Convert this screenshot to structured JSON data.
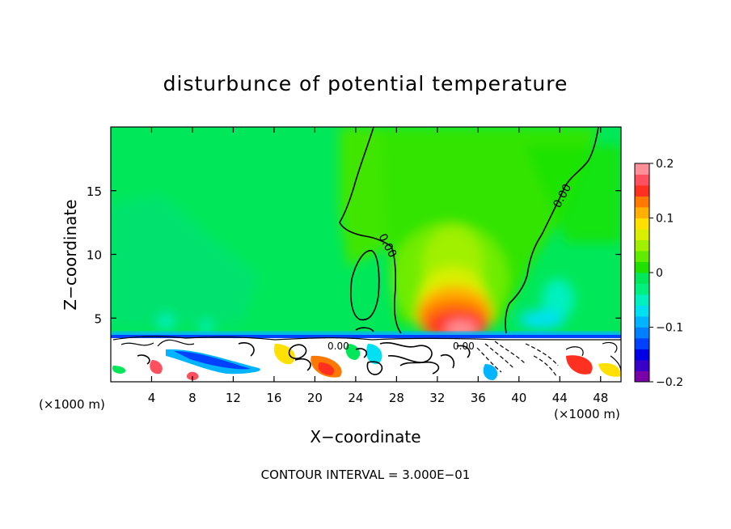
{
  "chart_data": {
    "type": "heatmap",
    "title": "disturbunce of potential temperature",
    "xlabel": "X−coordinate",
    "ylabel": "Z−coordinate",
    "x_unit_left": "(×1000 m)",
    "x_unit_right": "(×1000 m)",
    "xlim": [
      0,
      50
    ],
    "ylim": [
      0,
      20
    ],
    "x_ticks": [
      4,
      8,
      12,
      16,
      20,
      24,
      28,
      32,
      36,
      40,
      44,
      48
    ],
    "y_ticks": [
      5,
      10,
      15
    ],
    "colorbar": {
      "min": -0.2,
      "max": 0.2,
      "levels": 20,
      "tick_values": [
        0.2,
        0.1,
        0,
        -0.1,
        -0.2
      ],
      "tick_labels": [
        "0.2",
        "0.1",
        "0",
        "−0.1",
        "−0.2"
      ],
      "colors": [
        "#7a00a8",
        "#3800c8",
        "#0000e6",
        "#0040ff",
        "#0080ff",
        "#00b4ff",
        "#00e0f0",
        "#00f0c0",
        "#00f080",
        "#00e85a",
        "#20e000",
        "#60ec00",
        "#a0f000",
        "#d8f000",
        "#ffe000",
        "#ffb000",
        "#ff7800",
        "#ff3020",
        "#ff5060",
        "#ff9098"
      ]
    },
    "contour_label": "0.00",
    "annotation": "CONTOUR INTERVAL = 3.000E−01",
    "features": [
      {
        "name": "warm anomaly",
        "x_center": 33.5,
        "z_base": 3.5,
        "z_top": 8,
        "max_value": 0.19
      },
      {
        "name": "cold anomaly layer",
        "z": 3.7,
        "x_range": [
          0,
          50
        ],
        "min_value": -0.15
      },
      {
        "name": "boundary layer turbulence",
        "z_range": [
          0,
          3.5
        ]
      }
    ]
  }
}
